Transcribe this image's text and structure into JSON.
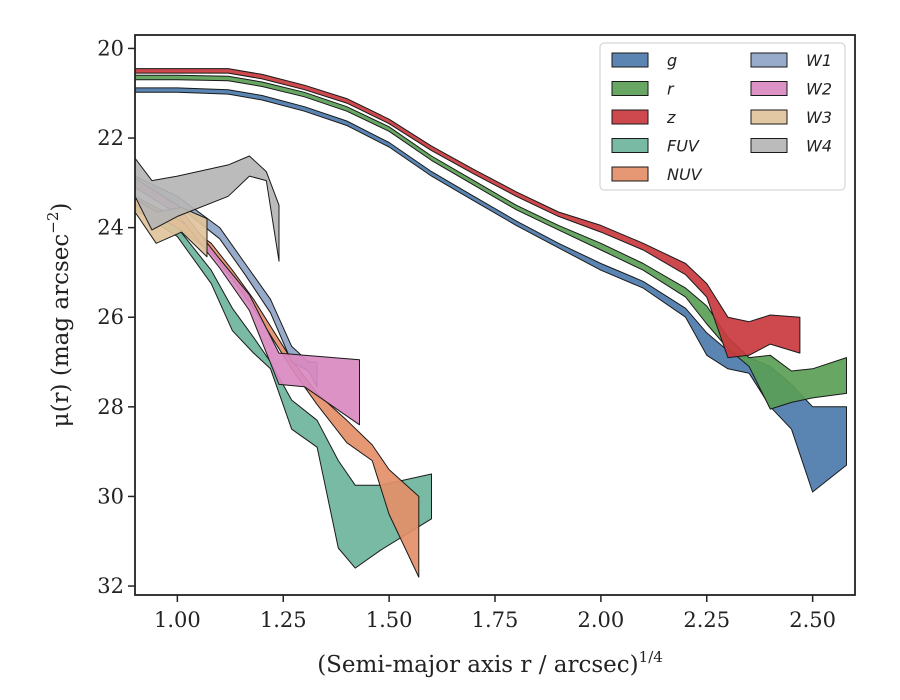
{
  "chart_data": {
    "type": "area",
    "xlabel": "(Semi-major axis r / arcsec)",
    "xlabel_sup": "1/4",
    "ylabel": "μ(r) (mag arcsec",
    "ylabel_sup": "−2",
    "ylabel_end": ")",
    "xlim": [
      0.9,
      2.6
    ],
    "ylim": [
      32.2,
      19.7
    ],
    "y_inverted": true,
    "xticks": [
      1.0,
      1.25,
      1.5,
      1.75,
      2.0,
      2.25,
      2.5
    ],
    "xtick_labels": [
      "1.00",
      "1.25",
      "1.50",
      "1.75",
      "2.00",
      "2.25",
      "2.50"
    ],
    "yticks": [
      20,
      22,
      24,
      26,
      28,
      30,
      32
    ],
    "ytick_labels": [
      "20",
      "22",
      "24",
      "26",
      "28",
      "30",
      "32"
    ],
    "grid": false,
    "legend_placement": "top-right",
    "legend_columns": 2,
    "series": [
      {
        "name": "g",
        "color": "#4c7bad",
        "x": [
          0.9,
          1.0,
          1.12,
          1.2,
          1.3,
          1.4,
          1.5,
          1.6,
          1.7,
          1.8,
          1.9,
          2.0,
          2.1,
          2.2,
          2.25,
          2.3,
          2.35,
          2.4,
          2.45,
          2.5,
          2.58
        ],
        "lower": [
          20.88,
          20.88,
          20.92,
          21.05,
          21.3,
          21.62,
          22.1,
          22.75,
          23.3,
          23.85,
          24.35,
          24.8,
          25.2,
          25.8,
          26.35,
          26.75,
          26.9,
          27.1,
          27.5,
          28.0,
          28.0
        ],
        "upper": [
          20.98,
          20.98,
          21.02,
          21.15,
          21.4,
          21.72,
          22.2,
          22.85,
          23.4,
          23.95,
          24.45,
          24.95,
          25.35,
          26.0,
          26.85,
          27.15,
          27.25,
          28.0,
          28.5,
          29.9,
          29.3
        ]
      },
      {
        "name": "r",
        "color": "#5a9e56",
        "x": [
          0.9,
          1.0,
          1.12,
          1.2,
          1.3,
          1.4,
          1.5,
          1.6,
          1.7,
          1.8,
          1.9,
          2.0,
          2.1,
          2.2,
          2.25,
          2.3,
          2.35,
          2.4,
          2.45,
          2.5,
          2.58
        ],
        "lower": [
          20.6,
          20.6,
          20.62,
          20.75,
          20.98,
          21.3,
          21.75,
          22.4,
          22.95,
          23.5,
          23.95,
          24.35,
          24.8,
          25.35,
          25.75,
          26.45,
          26.9,
          26.85,
          27.2,
          27.15,
          26.9
        ],
        "upper": [
          20.7,
          20.7,
          20.72,
          20.85,
          21.08,
          21.4,
          21.85,
          22.5,
          23.05,
          23.6,
          24.05,
          24.5,
          24.95,
          25.55,
          26.15,
          26.7,
          27.1,
          28.05,
          27.9,
          27.8,
          27.7
        ]
      },
      {
        "name": "z",
        "color": "#c93a3e",
        "x": [
          0.9,
          1.0,
          1.12,
          1.2,
          1.3,
          1.4,
          1.5,
          1.6,
          1.7,
          1.8,
          1.9,
          2.0,
          2.1,
          2.2,
          2.25,
          2.3,
          2.35,
          2.4,
          2.47
        ],
        "lower": [
          20.45,
          20.45,
          20.45,
          20.58,
          20.82,
          21.12,
          21.58,
          22.18,
          22.7,
          23.2,
          23.65,
          23.95,
          24.35,
          24.8,
          25.25,
          26.0,
          26.1,
          25.95,
          26.0
        ],
        "upper": [
          20.55,
          20.55,
          20.55,
          20.68,
          20.92,
          21.22,
          21.68,
          22.28,
          22.8,
          23.3,
          23.75,
          24.1,
          24.5,
          25.05,
          25.55,
          26.9,
          26.85,
          26.6,
          26.8
        ]
      },
      {
        "name": "FUV",
        "color": "#6db49c",
        "x": [
          0.9,
          1.0,
          1.08,
          1.13,
          1.18,
          1.22,
          1.27,
          1.33,
          1.38,
          1.42,
          1.48,
          1.6
        ],
        "lower": [
          23.4,
          24.0,
          24.95,
          25.8,
          26.45,
          27.0,
          27.85,
          28.3,
          29.2,
          29.75,
          29.75,
          29.5
        ],
        "upper": [
          23.6,
          24.2,
          25.25,
          26.3,
          26.8,
          27.15,
          28.5,
          28.9,
          31.15,
          31.6,
          31.2,
          30.5
        ]
      },
      {
        "name": "NUV",
        "color": "#e48f68",
        "x": [
          0.9,
          1.0,
          1.08,
          1.13,
          1.18,
          1.22,
          1.27,
          1.33,
          1.4,
          1.46,
          1.5,
          1.57
        ],
        "lower": [
          23.3,
          23.8,
          24.35,
          24.95,
          25.6,
          26.2,
          26.95,
          27.7,
          28.3,
          28.85,
          29.4,
          30.0
        ],
        "upper": [
          23.5,
          24.0,
          24.55,
          25.15,
          25.8,
          26.4,
          27.15,
          27.95,
          28.8,
          29.2,
          30.4,
          31.8
        ]
      },
      {
        "name": "W1",
        "color": "#8fa4c6",
        "x": [
          0.9,
          1.0,
          1.1,
          1.16,
          1.22,
          1.27,
          1.31,
          1.33
        ],
        "lower": [
          22.85,
          23.3,
          24.0,
          24.8,
          25.6,
          26.65,
          27.0,
          27.0
        ],
        "upper": [
          23.05,
          23.5,
          24.25,
          25.05,
          25.9,
          27.0,
          27.2,
          27.55
        ]
      },
      {
        "name": "W2",
        "color": "#d989c0",
        "x": [
          0.9,
          1.0,
          1.1,
          1.17,
          1.24,
          1.3,
          1.43
        ],
        "lower": [
          22.9,
          23.5,
          24.7,
          25.5,
          26.8,
          26.85,
          26.95
        ],
        "upper": [
          23.1,
          23.7,
          24.9,
          25.85,
          27.5,
          27.55,
          28.4
        ]
      },
      {
        "name": "W3",
        "color": "#dfc39b",
        "x": [
          0.9,
          0.95,
          1.01,
          1.07
        ],
        "lower": [
          23.35,
          23.65,
          23.55,
          23.8
        ],
        "upper": [
          23.65,
          24.35,
          24.1,
          24.65
        ]
      },
      {
        "name": "W4",
        "color": "#b5b5b5",
        "x": [
          0.9,
          0.94,
          1.0,
          1.12,
          1.17,
          1.21,
          1.24
        ],
        "lower": [
          22.45,
          22.95,
          22.85,
          22.6,
          22.4,
          22.75,
          23.5
        ],
        "upper": [
          23.3,
          24.05,
          23.75,
          23.3,
          22.85,
          22.95,
          24.75
        ]
      }
    ]
  }
}
